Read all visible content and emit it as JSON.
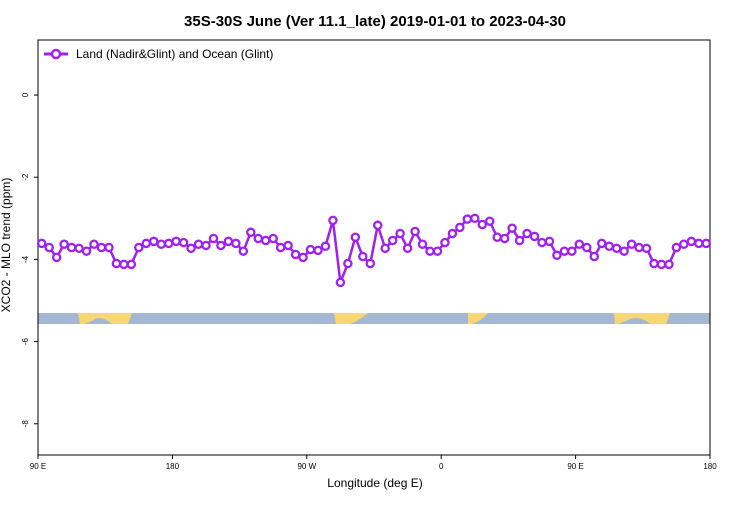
{
  "chart_data": {
    "type": "line",
    "title": "35S-30S June (Ver 11.1_late)   2019-01-01 to 2023-04-30",
    "xlabel": "Longitude (deg E)",
    "ylabel": "XCO2 - MLO trend (ppm)",
    "x": [
      92.5,
      97.5,
      102.5,
      107.5,
      112.5,
      117.5,
      122.5,
      127.5,
      132.5,
      137.5,
      142.5,
      147.5,
      152.5,
      157.5,
      162.5,
      167.5,
      172.5,
      177.5,
      182.5,
      187.5,
      192.5,
      197.5,
      202.5,
      207.5,
      212.5,
      217.5,
      222.5,
      227.5,
      232.5,
      237.5,
      242.5,
      247.5,
      252.5,
      257.5,
      262.5,
      267.5,
      272.5,
      277.5,
      282.5,
      287.5,
      292.5,
      297.5,
      302.5,
      307.5,
      312.5,
      317.5,
      322.5,
      327.5,
      332.5,
      337.5,
      342.5,
      347.5,
      352.5,
      357.5,
      362.5,
      367.5,
      372.5,
      377.5,
      382.5,
      387.5,
      392.5,
      397.5,
      402.5,
      407.5,
      412.5,
      417.5,
      422.5,
      427.5,
      432.5,
      437.5,
      442.5,
      447.5,
      452.5,
      457.5,
      462.5,
      467.5,
      472.5,
      477.5,
      482.5,
      487.5,
      492.5,
      497.5,
      502.5,
      507.5,
      512.5,
      517.5,
      522.5,
      527.5,
      532.5,
      537.5
    ],
    "series": [
      {
        "name": "Land (Nadir&Glint) and Ocean (Glint)",
        "color": "#a020f0",
        "values": [
          -3.61,
          -3.71,
          -3.95,
          -3.63,
          -3.71,
          -3.73,
          -3.8,
          -3.63,
          -3.71,
          -3.71,
          -4.1,
          -4.12,
          -4.12,
          -3.71,
          -3.61,
          -3.56,
          -3.63,
          -3.61,
          -3.56,
          -3.59,
          -3.73,
          -3.63,
          -3.66,
          -3.49,
          -3.66,
          -3.56,
          -3.61,
          -3.8,
          -3.34,
          -3.49,
          -3.54,
          -3.49,
          -3.71,
          -3.66,
          -3.88,
          -3.95,
          -3.76,
          -3.78,
          -3.68,
          -3.05,
          -4.56,
          -4.1,
          -3.46,
          -3.93,
          -4.1,
          -3.17,
          -3.73,
          -3.54,
          -3.37,
          -3.73,
          -3.32,
          -3.63,
          -3.8,
          -3.8,
          -3.59,
          -3.37,
          -3.22,
          -3.02,
          -3.0,
          -3.15,
          -3.07,
          -3.46,
          -3.49,
          -3.24,
          -3.54,
          -3.37,
          -3.44,
          -3.59,
          -3.56,
          -3.9,
          -3.8,
          -3.8,
          -3.63,
          -3.71,
          -3.93,
          -3.61,
          -3.68,
          -3.73,
          -3.8,
          -3.63,
          -3.71,
          -3.73,
          -4.1,
          -4.12,
          -4.12,
          -3.71,
          -3.63,
          -3.56,
          -3.61,
          -3.61
        ]
      }
    ],
    "xlim": [
      90,
      540
    ],
    "xticks": [
      {
        "value": 90,
        "label": "90 E"
      },
      180,
      {
        "value": 270,
        "label": "90 W"
      },
      {
        "value": 360,
        "label": "0"
      },
      {
        "value": 450,
        "label": "90 E"
      },
      {
        "value": 540,
        "label": "180"
      }
    ],
    "ylim": [
      -8.76,
      1.34
    ],
    "yticks": [
      0,
      -2,
      -4,
      -6,
      -8
    ],
    "legend": "upper left"
  }
}
